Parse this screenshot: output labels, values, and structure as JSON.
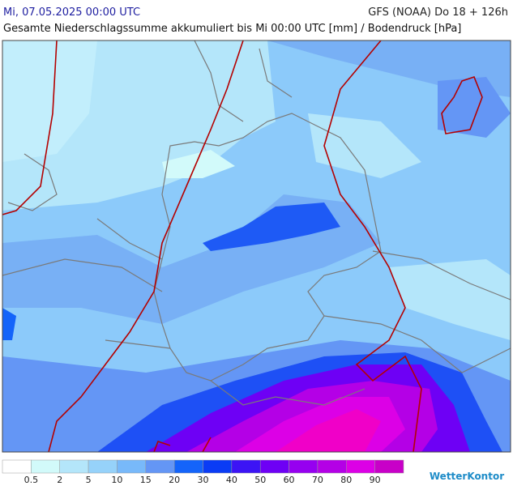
{
  "header": {
    "datetime": "Mi, 07.05.2025 00:00 UTC",
    "model": "GFS (NOAA) Do 18 + 126h",
    "subtitle": "Gesamte Niederschlagssumme akkumuliert bis Mi 00:00 UTC [mm] / Bodendruck [hPa]"
  },
  "legend": {
    "colors": [
      "#ffffff",
      "#d2fafa",
      "#b4e6fa",
      "#96d2fa",
      "#78b9fa",
      "#6496f5",
      "#1464fa",
      "#0a3cf5",
      "#3c14f5",
      "#6e00f5",
      "#9600f0",
      "#b400e6",
      "#dc00e6",
      "#c800c8"
    ],
    "ticks": [
      0.5,
      2,
      5,
      10,
      15,
      20,
      30,
      40,
      50,
      60,
      70,
      80,
      90
    ]
  },
  "brand": "WetterKontor"
}
